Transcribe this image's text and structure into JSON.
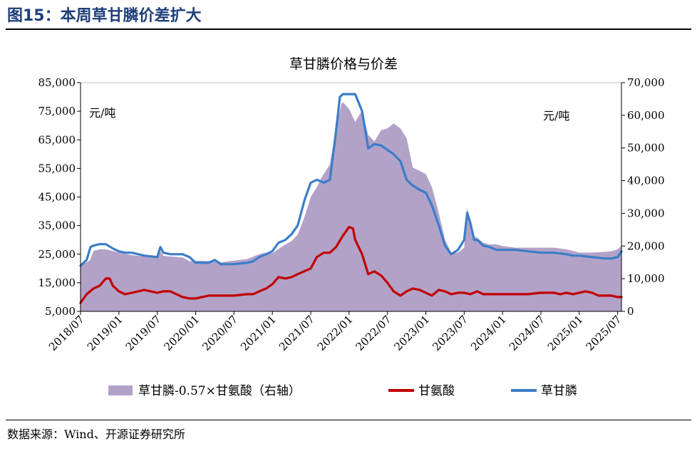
{
  "figure_title": "图15：本周草甘膦价差扩大",
  "source": "数据来源：Wind、开源证券研究所",
  "chart_data": {
    "type": "line",
    "title": "草甘膦价格与价差",
    "left_unit": "元/吨",
    "right_unit": "元/吨",
    "y_left": {
      "ticks": [
        "5,000",
        "15,000",
        "25,000",
        "35,000",
        "45,000",
        "55,000",
        "65,000",
        "75,000",
        "85,000"
      ],
      "range": [
        5000,
        85000
      ]
    },
    "y_right": {
      "ticks": [
        "0",
        "10,000",
        "20,000",
        "30,000",
        "40,000",
        "50,000",
        "60,000",
        "70,000"
      ],
      "range": [
        0,
        70000
      ]
    },
    "x_ticks": [
      "2018/07",
      "2019/01",
      "2019/07",
      "2020/01",
      "2020/07",
      "2021/01",
      "2021/07",
      "2022/01",
      "2022/07",
      "2023/01",
      "2023/07",
      "2024/01",
      "2024/07",
      "2025/01",
      "2025/07"
    ],
    "x_range": [
      2018.5,
      2025.55
    ],
    "grid": false,
    "legend_position": "bottom",
    "colors": {
      "spread": "#b3a2c8",
      "glycine": "#c00000",
      "glyphosate": "#3a7dc9"
    },
    "series": [
      {
        "name": "草甘膦-0.57×甘氨酸（右轴）",
        "kind": "area",
        "axis": "right",
        "x": [
          2018.5,
          2018.62,
          2018.67,
          2018.75,
          2018.83,
          2018.92,
          2019.0,
          2019.17,
          2019.33,
          2019.5,
          2019.54,
          2019.58,
          2019.67,
          2019.83,
          2019.92,
          2020.0,
          2020.17,
          2020.25,
          2020.33,
          2020.42,
          2020.5,
          2020.67,
          2020.83,
          2020.92,
          2021.0,
          2021.17,
          2021.25,
          2021.33,
          2021.42,
          2021.5,
          2021.58,
          2021.63,
          2021.67,
          2021.75,
          2021.83,
          2021.9,
          2021.92,
          2022.0,
          2022.08,
          2022.17,
          2022.25,
          2022.33,
          2022.42,
          2022.5,
          2022.58,
          2022.67,
          2022.75,
          2022.83,
          2022.92,
          2023.0,
          2023.08,
          2023.17,
          2023.25,
          2023.33,
          2023.42,
          2023.5,
          2023.54,
          2023.58,
          2023.63,
          2023.67,
          2023.75,
          2023.83,
          2023.92,
          2024.0,
          2024.17,
          2024.33,
          2024.5,
          2024.67,
          2024.83,
          2024.92,
          2025.0,
          2025.17,
          2025.33,
          2025.42,
          2025.5,
          2025.55
        ],
        "values": [
          14000,
          15500,
          18500,
          19000,
          19000,
          18500,
          18000,
          17200,
          16800,
          16300,
          18500,
          17000,
          16800,
          16500,
          15300,
          15500,
          15400,
          15700,
          15000,
          15300,
          15500,
          16000,
          17500,
          18000,
          17800,
          20500,
          21500,
          23500,
          29000,
          35000,
          38000,
          40500,
          42000,
          45000,
          56000,
          63500,
          64000,
          62000,
          58000,
          61500,
          54000,
          52000,
          55500,
          56000,
          57500,
          56000,
          53000,
          44000,
          43000,
          42000,
          38000,
          30000,
          22000,
          18000,
          18000,
          19500,
          32000,
          26000,
          23000,
          22500,
          21000,
          20500,
          20500,
          20000,
          19500,
          19500,
          19500,
          19500,
          19000,
          18500,
          18000,
          18000,
          18200,
          18400,
          19000,
          20000
        ]
      },
      {
        "name": "甘氨酸",
        "kind": "line",
        "axis": "left",
        "x": [
          2018.5,
          2018.58,
          2018.67,
          2018.75,
          2018.83,
          2018.88,
          2018.92,
          2019.0,
          2019.08,
          2019.17,
          2019.25,
          2019.33,
          2019.5,
          2019.58,
          2019.67,
          2019.75,
          2019.83,
          2019.92,
          2020.0,
          2020.17,
          2020.33,
          2020.42,
          2020.5,
          2020.67,
          2020.75,
          2020.83,
          2020.92,
          2021.0,
          2021.08,
          2021.17,
          2021.25,
          2021.33,
          2021.5,
          2021.58,
          2021.67,
          2021.75,
          2021.83,
          2021.92,
          2022.0,
          2022.05,
          2022.08,
          2022.17,
          2022.25,
          2022.33,
          2022.42,
          2022.5,
          2022.58,
          2022.67,
          2022.75,
          2022.83,
          2022.92,
          2023.0,
          2023.08,
          2023.17,
          2023.25,
          2023.33,
          2023.42,
          2023.5,
          2023.58,
          2023.67,
          2023.75,
          2023.83,
          2023.92,
          2024.0,
          2024.17,
          2024.33,
          2024.5,
          2024.67,
          2024.75,
          2024.83,
          2024.92,
          2025.0,
          2025.08,
          2025.17,
          2025.25,
          2025.33,
          2025.42,
          2025.5,
          2025.55
        ],
        "values": [
          8000,
          11000,
          13000,
          14000,
          16500,
          16500,
          14000,
          12000,
          11000,
          11500,
          12000,
          12500,
          11500,
          12000,
          12000,
          11000,
          10000,
          9500,
          9500,
          10500,
          10500,
          10500,
          10500,
          11000,
          11000,
          12000,
          13000,
          14500,
          17000,
          16500,
          17000,
          18000,
          20000,
          24000,
          25500,
          25500,
          27500,
          31500,
          34500,
          34000,
          30000,
          25000,
          18000,
          19000,
          17500,
          15000,
          12000,
          10500,
          12000,
          13000,
          12500,
          11500,
          10500,
          12500,
          12000,
          11000,
          11500,
          11500,
          11000,
          12000,
          11000,
          11000,
          11000,
          11000,
          11000,
          11000,
          11500,
          11500,
          11000,
          11500,
          11000,
          11500,
          12000,
          11500,
          10500,
          10500,
          10500,
          10000,
          10000
        ]
      },
      {
        "name": "草甘膦",
        "kind": "line",
        "axis": "left",
        "x": [
          2018.5,
          2018.58,
          2018.63,
          2018.67,
          2018.75,
          2018.83,
          2018.92,
          2019.0,
          2019.08,
          2019.17,
          2019.33,
          2019.5,
          2019.54,
          2019.58,
          2019.67,
          2019.83,
          2019.92,
          2020.0,
          2020.17,
          2020.25,
          2020.33,
          2020.42,
          2020.5,
          2020.67,
          2020.75,
          2020.83,
          2020.92,
          2021.0,
          2021.08,
          2021.17,
          2021.25,
          2021.33,
          2021.42,
          2021.5,
          2021.58,
          2021.63,
          2021.67,
          2021.75,
          2021.83,
          2021.88,
          2021.92,
          2022.0,
          2022.08,
          2022.17,
          2022.25,
          2022.33,
          2022.42,
          2022.5,
          2022.58,
          2022.67,
          2022.75,
          2022.83,
          2022.92,
          2023.0,
          2023.08,
          2023.17,
          2023.25,
          2023.33,
          2023.42,
          2023.5,
          2023.54,
          2023.58,
          2023.63,
          2023.67,
          2023.75,
          2023.83,
          2023.92,
          2024.0,
          2024.17,
          2024.33,
          2024.5,
          2024.67,
          2024.83,
          2024.92,
          2025.0,
          2025.17,
          2025.33,
          2025.42,
          2025.5,
          2025.55
        ],
        "values": [
          21000,
          23000,
          27500,
          28000,
          28500,
          28500,
          27000,
          26000,
          25500,
          25500,
          24500,
          24000,
          27500,
          25500,
          25000,
          25000,
          24000,
          22000,
          22000,
          23000,
          21500,
          21500,
          21500,
          22000,
          22500,
          24000,
          25000,
          26000,
          29000,
          30000,
          32000,
          35000,
          44000,
          50000,
          51000,
          50500,
          50000,
          51000,
          68000,
          80000,
          81000,
          81000,
          81000,
          75000,
          62000,
          63500,
          63000,
          61500,
          60000,
          57500,
          51000,
          49000,
          47500,
          46500,
          42000,
          35000,
          28000,
          25000,
          26500,
          30000,
          39500,
          36000,
          30000,
          30000,
          28000,
          27500,
          26500,
          26500,
          26500,
          26000,
          25500,
          25500,
          25000,
          24500,
          24500,
          24000,
          23500,
          23500,
          24000,
          26000
        ]
      }
    ]
  }
}
